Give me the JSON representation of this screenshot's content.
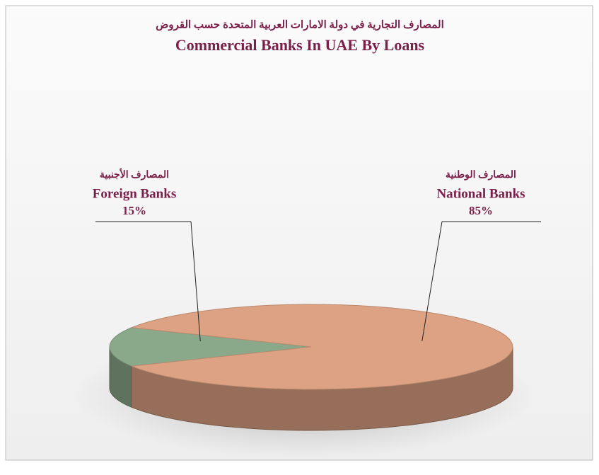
{
  "chart_data": {
    "type": "pie",
    "title": "المصارف التجارية في دولة الامارات العربية المتحدة حسب القروض",
    "subtitle": "Commercial Banks In UAE By Loans",
    "categories": [
      "Foreign Banks",
      "National Banks"
    ],
    "categories_ar": [
      "المصارف الأجنبية",
      "المصارف الوطنية"
    ],
    "values": [
      15,
      85
    ],
    "value_labels": [
      "15%",
      "85%"
    ],
    "colors": [
      "#8aa88a",
      "#dca283"
    ]
  }
}
